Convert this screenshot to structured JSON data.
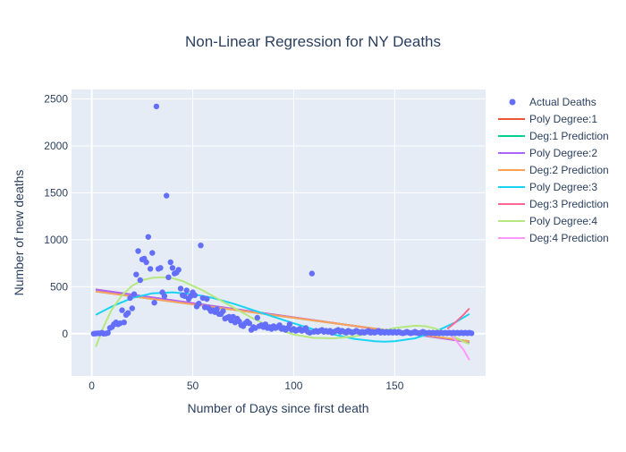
{
  "chart_data": {
    "type": "scatter",
    "title": "Non-Linear Regression for NY Deaths",
    "xlabel": "Number of Days since first death",
    "ylabel": "Number of new deaths",
    "xlim": [
      -10,
      195
    ],
    "ylim": [
      -450,
      2600
    ],
    "x_ticks": [
      0,
      50,
      100,
      150
    ],
    "y_ticks": [
      0,
      500,
      1000,
      1500,
      2000,
      2500
    ],
    "grid": true,
    "legend_position": "right",
    "plot_background": "#e5ecf6",
    "scatter": {
      "name": "Actual Deaths",
      "color": "#636efa",
      "points": [
        [
          1,
          0
        ],
        [
          2,
          2
        ],
        [
          3,
          5
        ],
        [
          4,
          3
        ],
        [
          5,
          10
        ],
        [
          6,
          0
        ],
        [
          7,
          2
        ],
        [
          8,
          8
        ],
        [
          9,
          60
        ],
        [
          10,
          70
        ],
        [
          11,
          100
        ],
        [
          12,
          120
        ],
        [
          13,
          100
        ],
        [
          14,
          110
        ],
        [
          15,
          250
        ],
        [
          16,
          120
        ],
        [
          17,
          200
        ],
        [
          18,
          220
        ],
        [
          19,
          380
        ],
        [
          20,
          270
        ],
        [
          21,
          420
        ],
        [
          22,
          630
        ],
        [
          23,
          880
        ],
        [
          24,
          570
        ],
        [
          25,
          790
        ],
        [
          26,
          800
        ],
        [
          27,
          760
        ],
        [
          28,
          1030
        ],
        [
          29,
          690
        ],
        [
          30,
          860
        ],
        [
          31,
          330
        ],
        [
          32,
          2420
        ],
        [
          33,
          690
        ],
        [
          34,
          700
        ],
        [
          35,
          440
        ],
        [
          36,
          400
        ],
        [
          37,
          1470
        ],
        [
          38,
          600
        ],
        [
          39,
          760
        ],
        [
          40,
          700
        ],
        [
          41,
          640
        ],
        [
          42,
          650
        ],
        [
          43,
          680
        ],
        [
          44,
          480
        ],
        [
          45,
          410
        ],
        [
          46,
          400
        ],
        [
          47,
          460
        ],
        [
          48,
          370
        ],
        [
          49,
          400
        ],
        [
          50,
          440
        ],
        [
          51,
          410
        ],
        [
          52,
          290
        ],
        [
          53,
          320
        ],
        [
          54,
          940
        ],
        [
          55,
          380
        ],
        [
          56,
          280
        ],
        [
          57,
          370
        ],
        [
          58,
          270
        ],
        [
          59,
          240
        ],
        [
          60,
          250
        ],
        [
          61,
          230
        ],
        [
          62,
          260
        ],
        [
          63,
          210
        ],
        [
          64,
          210
        ],
        [
          65,
          240
        ],
        [
          66,
          160
        ],
        [
          67,
          170
        ],
        [
          68,
          180
        ],
        [
          69,
          140
        ],
        [
          70,
          180
        ],
        [
          71,
          120
        ],
        [
          72,
          160
        ],
        [
          73,
          130
        ],
        [
          74,
          90
        ],
        [
          75,
          80
        ],
        [
          76,
          110
        ],
        [
          77,
          130
        ],
        [
          78,
          110
        ],
        [
          79,
          40
        ],
        [
          80,
          70
        ],
        [
          81,
          60
        ],
        [
          82,
          170
        ],
        [
          83,
          80
        ],
        [
          84,
          90
        ],
        [
          85,
          70
        ],
        [
          86,
          100
        ],
        [
          87,
          60
        ],
        [
          88,
          70
        ],
        [
          89,
          50
        ],
        [
          90,
          80
        ],
        [
          91,
          60
        ],
        [
          92,
          70
        ],
        [
          93,
          90
        ],
        [
          94,
          50
        ],
        [
          95,
          60
        ],
        [
          96,
          40
        ],
        [
          97,
          60
        ],
        [
          98,
          100
        ],
        [
          99,
          40
        ],
        [
          100,
          50
        ],
        [
          101,
          30
        ],
        [
          102,
          40
        ],
        [
          103,
          50
        ],
        [
          104,
          30
        ],
        [
          105,
          40
        ],
        [
          106,
          60
        ],
        [
          107,
          20
        ],
        [
          108,
          10
        ],
        [
          109,
          640
        ],
        [
          110,
          20
        ],
        [
          111,
          30
        ],
        [
          112,
          20
        ],
        [
          113,
          30
        ],
        [
          114,
          40
        ],
        [
          115,
          20
        ],
        [
          116,
          30
        ],
        [
          117,
          20
        ],
        [
          118,
          30
        ],
        [
          119,
          10
        ],
        [
          120,
          20
        ],
        [
          121,
          30
        ],
        [
          122,
          40
        ],
        [
          123,
          20
        ],
        [
          124,
          30
        ],
        [
          125,
          20
        ],
        [
          126,
          10
        ],
        [
          127,
          30
        ],
        [
          128,
          20
        ],
        [
          129,
          10
        ],
        [
          130,
          20
        ],
        [
          131,
          30
        ],
        [
          132,
          20
        ],
        [
          133,
          10
        ],
        [
          134,
          20
        ],
        [
          135,
          10
        ],
        [
          136,
          20
        ],
        [
          137,
          30
        ],
        [
          138,
          10
        ],
        [
          139,
          20
        ],
        [
          140,
          10
        ],
        [
          141,
          20
        ],
        [
          142,
          30
        ],
        [
          143,
          10
        ],
        [
          144,
          20
        ],
        [
          145,
          10
        ],
        [
          146,
          20
        ],
        [
          147,
          10
        ],
        [
          148,
          20
        ],
        [
          149,
          10
        ],
        [
          150,
          20
        ],
        [
          151,
          10
        ],
        [
          152,
          20
        ],
        [
          153,
          10
        ],
        [
          154,
          5
        ],
        [
          155,
          10
        ],
        [
          156,
          20
        ],
        [
          157,
          10
        ],
        [
          158,
          5
        ],
        [
          159,
          10
        ],
        [
          160,
          20
        ],
        [
          161,
          10
        ],
        [
          162,
          5
        ],
        [
          163,
          10
        ],
        [
          164,
          20
        ],
        [
          165,
          10
        ],
        [
          166,
          5
        ],
        [
          167,
          10
        ],
        [
          168,
          5
        ],
        [
          169,
          10
        ],
        [
          170,
          5
        ],
        [
          171,
          10
        ],
        [
          172,
          5
        ],
        [
          173,
          10
        ],
        [
          174,
          5
        ],
        [
          175,
          10
        ],
        [
          176,
          5
        ],
        [
          177,
          10
        ],
        [
          178,
          5
        ],
        [
          179,
          10
        ],
        [
          180,
          5
        ],
        [
          181,
          10
        ],
        [
          182,
          5
        ],
        [
          183,
          10
        ],
        [
          184,
          5
        ],
        [
          185,
          10
        ],
        [
          186,
          5
        ],
        [
          187,
          10
        ],
        [
          188,
          5
        ]
      ]
    },
    "series": [
      {
        "name": "Poly Degree:1",
        "color": "#ef553b",
        "x": [
          2,
          187
        ],
        "y": [
          470,
          -90
        ]
      },
      {
        "name": "Deg:1 Prediction",
        "color": "#00cc96",
        "x": [
          2,
          187
        ],
        "y": [
          450,
          -80
        ]
      },
      {
        "name": "Poly Degree:2",
        "color": "#ab63fa",
        "x": [
          2,
          187
        ],
        "y": [
          470,
          -90
        ]
      },
      {
        "name": "Deg:2 Prediction",
        "color": "#ffa15a",
        "x": [
          2,
          187
        ],
        "y": [
          450,
          -80
        ]
      },
      {
        "name": "Poly Degree:3",
        "color": "#19d3f3",
        "x": [
          2,
          10,
          20,
          30,
          40,
          50,
          60,
          70,
          80,
          90,
          100,
          110,
          120,
          130,
          140,
          145,
          150,
          160,
          170,
          180,
          187
        ],
        "y": [
          200,
          290,
          380,
          430,
          440,
          420,
          380,
          320,
          250,
          180,
          110,
          45,
          -10,
          -55,
          -80,
          -85,
          -80,
          -50,
          20,
          120,
          210
        ]
      },
      {
        "name": "Deg:3 Prediction",
        "color": "#ff6692",
        "x": [
          176,
          180,
          184,
          187
        ],
        "y": [
          50,
          120,
          200,
          270
        ]
      },
      {
        "name": "Poly Degree:4",
        "color": "#b6e880",
        "x": [
          2,
          6,
          10,
          15,
          20,
          25,
          30,
          35,
          40,
          45,
          50,
          55,
          60,
          70,
          80,
          90,
          100,
          110,
          120,
          130,
          140,
          150,
          160,
          165,
          170,
          175,
          180,
          184,
          187
        ],
        "y": [
          -140,
          80,
          260,
          410,
          510,
          570,
          595,
          600,
          590,
          560,
          510,
          460,
          400,
          280,
          160,
          60,
          -10,
          -45,
          -50,
          -30,
          10,
          60,
          85,
          80,
          55,
          10,
          -40,
          -85,
          -110
        ]
      },
      {
        "name": "Deg:4 Prediction",
        "color": "#ff97ff",
        "x": [
          178,
          181,
          184,
          187
        ],
        "y": [
          -20,
          -90,
          -170,
          -280
        ]
      }
    ]
  }
}
